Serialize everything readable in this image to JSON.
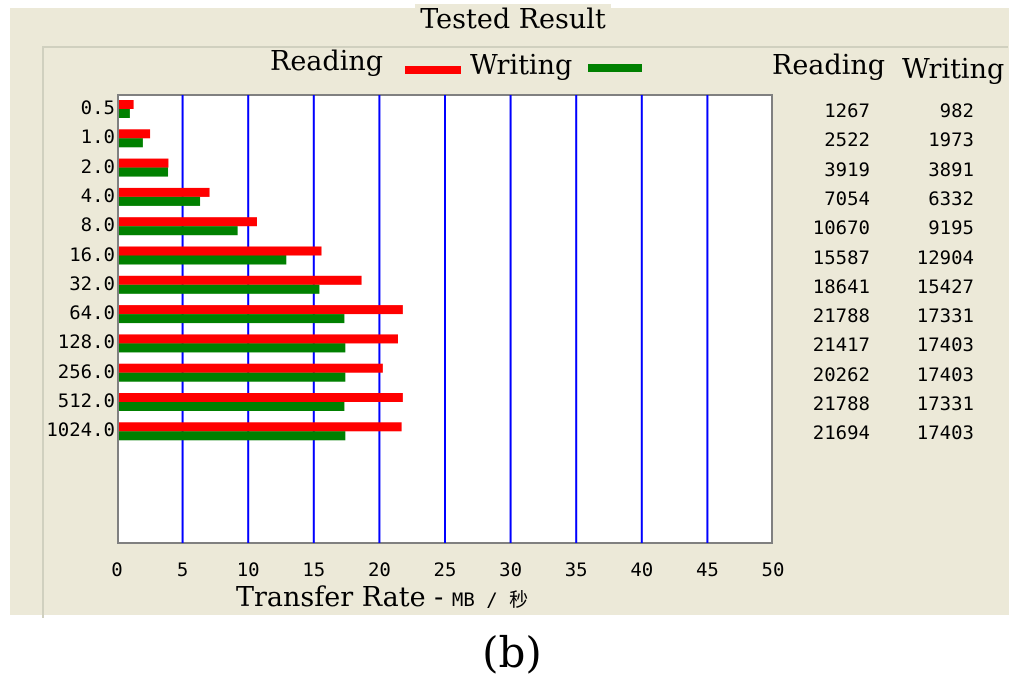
{
  "title": "Tested Result",
  "caption": "(b)",
  "legend": {
    "reading_label": "Reading",
    "writing_label": "Writing"
  },
  "table": {
    "reading_header": "Reading",
    "writing_header": "Writing"
  },
  "colors": {
    "reading": "#ff0000",
    "writing": "#008000",
    "gridline": "#0000ff",
    "window_bg": "#ece9d8"
  },
  "chart_data": {
    "type": "bar",
    "orientation": "horizontal",
    "title": "Tested Result",
    "xlabel": "Transfer Rate - MB / 秒",
    "ylabel": "",
    "xlim": [
      0,
      50
    ],
    "xticks": [
      "0",
      "5",
      "10",
      "15",
      "20",
      "25",
      "30",
      "35",
      "40",
      "45",
      "50"
    ],
    "categories": [
      "0.5",
      "1.0",
      "2.0",
      "4.0",
      "8.0",
      "16.0",
      "32.0",
      "64.0",
      "128.0",
      "256.0",
      "512.0",
      "1024.0"
    ],
    "series": [
      {
        "name": "Reading",
        "values": [
          1.267,
          2.522,
          3.919,
          7.054,
          10.67,
          15.587,
          18.641,
          21.788,
          21.417,
          20.262,
          21.788,
          21.694
        ]
      },
      {
        "name": "Writing",
        "values": [
          0.982,
          1.973,
          3.891,
          6.332,
          9.195,
          12.904,
          15.427,
          17.331,
          17.403,
          17.403,
          17.331,
          17.403
        ]
      }
    ],
    "table_values": {
      "reading": [
        "1267",
        "2522",
        "3919",
        "7054",
        "10670",
        "15587",
        "18641",
        "21788",
        "21417",
        "20262",
        "21788",
        "21694"
      ],
      "writing": [
        "982",
        "1973",
        "3891",
        "6332",
        "9195",
        "12904",
        "15427",
        "17331",
        "17403",
        "17403",
        "17331",
        "17403"
      ]
    },
    "grid": true,
    "legend_position": "top"
  }
}
